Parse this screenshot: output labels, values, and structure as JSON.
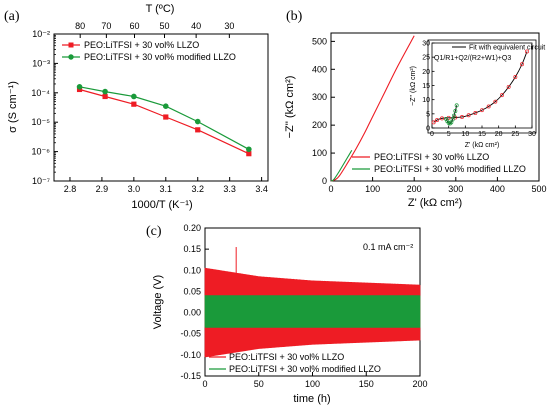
{
  "chart_data": [
    {
      "id": "a",
      "type": "line",
      "panel_label": "(a)",
      "xlabel": "1000/T (K⁻¹)",
      "ylabel": "σ (S cm⁻¹)",
      "top_xlabel": "T (ºC)",
      "xlim": [
        2.75,
        3.42
      ],
      "ylim": [
        1e-07,
        0.01
      ],
      "yscale": "log",
      "xticks": [
        "2.8",
        "2.9",
        "3.0",
        "3.1",
        "3.2",
        "3.3",
        "3.4"
      ],
      "yticks": [
        "10⁻⁷",
        "10⁻⁶",
        "10⁻⁵",
        "10⁻⁴",
        "10⁻³",
        "10⁻²"
      ],
      "top_ticks": [
        {
          "label": "80",
          "x": 2.832
        },
        {
          "label": "70",
          "x": 2.914
        },
        {
          "label": "60",
          "x": 3.002
        },
        {
          "label": "50",
          "x": 3.096
        },
        {
          "label": "40",
          "x": 3.195
        },
        {
          "label": "30",
          "x": 3.299
        }
      ],
      "grid": false,
      "legend_position": "top-left",
      "series": [
        {
          "name": "PEO:LiTFSI + 30 vol% LLZO",
          "color": "#ee1c24",
          "marker": "square",
          "x": [
            2.83,
            2.91,
            3.0,
            3.1,
            3.2,
            3.36
          ],
          "y": [
            0.00013,
            7.5e-05,
            4.1e-05,
            1.5e-05,
            5.5e-06,
            8.5e-07
          ]
        },
        {
          "name": "PEO:LiTFSI + 30 vol% modified LLZO",
          "color": "#1a9a3a",
          "marker": "circle",
          "x": [
            2.83,
            2.91,
            3.0,
            3.1,
            3.2,
            3.36
          ],
          "y": [
            0.00016,
            0.00011,
            7.5e-05,
            3.5e-05,
            1.05e-05,
            1.2e-06
          ]
        }
      ]
    },
    {
      "id": "b",
      "type": "line",
      "panel_label": "(b)",
      "xlabel": "Z' (kΩ cm²)",
      "ylabel": "−Z'' (kΩ cm²)",
      "xlim": [
        0,
        500
      ],
      "ylim": [
        0,
        530
      ],
      "xticks": [
        0,
        100,
        200,
        300,
        400,
        500
      ],
      "yticks": [
        0,
        100,
        200,
        300,
        400,
        500
      ],
      "grid": false,
      "legend_position": "bottom-right",
      "series": [
        {
          "name": "PEO:LiTFSI + 30 vol% LLZO",
          "color": "#ee1c24",
          "x": [
            0,
            10,
            20,
            40,
            60,
            80,
            100,
            130,
            160,
            200
          ],
          "y": [
            0,
            5,
            18,
            65,
            115,
            170,
            230,
            320,
            410,
            520
          ]
        },
        {
          "name": "PEO:LiTFSI + 30 vol% modified LLZO",
          "color": "#1a9a3a",
          "x": [
            0,
            5,
            10,
            20,
            30,
            40,
            50
          ],
          "y": [
            0,
            3,
            12,
            35,
            60,
            85,
            110
          ]
        }
      ],
      "inset": {
        "xlabel": "Z' (kΩ cm²)",
        "ylabel": "−Z'' (kΩ cm²)",
        "xlim": [
          0,
          30
        ],
        "ylim": [
          0,
          30
        ],
        "xticks": [
          0,
          5,
          10,
          15,
          20,
          25,
          30
        ],
        "yticks": [
          0,
          5,
          10,
          15,
          20,
          25,
          30
        ],
        "legend": "Fit with equivalent circuit",
        "circuit": "Q1/R1+Q2/(R2+W1)+Q3",
        "fit_color": "#000000",
        "series": [
          {
            "name": "PEO:LiTFSI + 30 vol% LLZO",
            "color": "#ee1c24",
            "marker": "open-circle",
            "x": [
              0.5,
              1.5,
              3,
              5,
              7,
              9,
              11,
              13,
              15,
              17,
              19,
              21,
              23,
              25,
              27,
              28.5
            ],
            "y": [
              2,
              2.8,
              3.4,
              3.6,
              3.7,
              3.9,
              4.5,
              5.3,
              6.3,
              7.6,
              9.3,
              11.6,
              14.5,
              18,
              22.5,
              27
            ]
          },
          {
            "name": "PEO:LiTFSI + 30 vol% modified LLZO",
            "color": "#1a9a3a",
            "marker": "open-circle",
            "x": [
              4.2,
              4.6,
              5.0,
              5.4,
              5.8,
              6.2,
              6.6,
              7.0,
              7.4
            ],
            "y": [
              3.2,
              2.4,
              1.8,
              1.6,
              2.0,
              3.0,
              4.4,
              6.0,
              8.0
            ]
          }
        ]
      }
    },
    {
      "id": "c",
      "type": "line",
      "panel_label": "(c)",
      "xlabel": "time (h)",
      "ylabel": "Voltage (V)",
      "annotation": "0.1 mA cm⁻²",
      "xlim": [
        0,
        200
      ],
      "ylim": [
        -0.15,
        0.2
      ],
      "xticks": [
        0,
        50,
        100,
        150,
        200
      ],
      "yticks": [
        "-0.15",
        "-0.10",
        "-0.05",
        "0.00",
        "0.05",
        "0.10",
        "0.15",
        "0.20"
      ],
      "grid": false,
      "legend_position": "bottom-left",
      "series": [
        {
          "name": "PEO:LiTFSI + 30 vol% LLZO",
          "color": "#ee1c24",
          "envelope_time": [
            0,
            25,
            50,
            100,
            150,
            200
          ],
          "envelope_upper": [
            0.105,
            0.095,
            0.085,
            0.075,
            0.07,
            0.065
          ],
          "envelope_lower": [
            -0.105,
            -0.095,
            -0.085,
            -0.075,
            -0.07,
            -0.065
          ],
          "spike": {
            "time": 29,
            "voltage": 0.155
          }
        },
        {
          "name": "PEO:LiTFSI + 30 vol% modified LLZO",
          "color": "#1a9a3a",
          "envelope_time": [
            0,
            50,
            100,
            150,
            200
          ],
          "envelope_upper": [
            0.04,
            0.04,
            0.04,
            0.04,
            0.04
          ],
          "envelope_lower": [
            -0.035,
            -0.035,
            -0.035,
            -0.035,
            -0.035
          ]
        }
      ]
    }
  ]
}
